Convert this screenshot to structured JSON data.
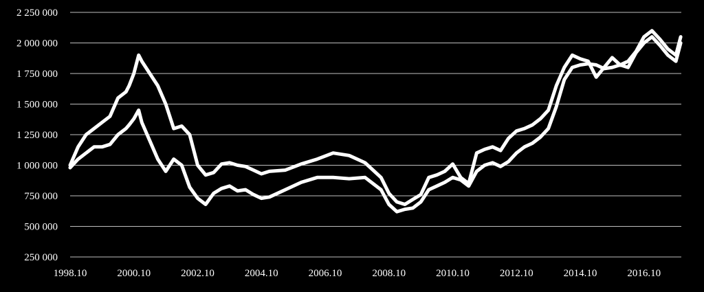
{
  "chart_data": {
    "type": "line",
    "title": "",
    "xlabel": "",
    "ylabel": "",
    "xlim": [
      1998.75,
      2017.92
    ],
    "ylim": [
      250000,
      2250000
    ],
    "grid": true,
    "legend": "none",
    "colors": {
      "background": "#000000",
      "line": "#ffffff",
      "grid": "#bfbfbf",
      "text": "#ffffff"
    },
    "yticks": [
      {
        "value": 2250000,
        "label": "2 250 000"
      },
      {
        "value": 2000000,
        "label": "2 000 000"
      },
      {
        "value": 1750000,
        "label": "1 750 000"
      },
      {
        "value": 1500000,
        "label": "1 500 000"
      },
      {
        "value": 1250000,
        "label": "1 250 000"
      },
      {
        "value": 1000000,
        "label": "1 000 000"
      },
      {
        "value": 750000,
        "label": "750 000"
      },
      {
        "value": 500000,
        "label": "500 000"
      },
      {
        "value": 250000,
        "label": "250 000"
      }
    ],
    "xticks": [
      {
        "value": 1998.75,
        "label": "1998.10"
      },
      {
        "value": 2000.75,
        "label": "2000.10"
      },
      {
        "value": 2002.75,
        "label": "2002.10"
      },
      {
        "value": 2004.75,
        "label": "2004.10"
      },
      {
        "value": 2006.75,
        "label": "2006.10"
      },
      {
        "value": 2008.75,
        "label": "2008.10"
      },
      {
        "value": 2010.75,
        "label": "2010.10"
      },
      {
        "value": 2012.75,
        "label": "2012.10"
      },
      {
        "value": 2014.75,
        "label": "2014.10"
      },
      {
        "value": 2016.75,
        "label": "2016.10"
      }
    ],
    "series": [
      {
        "x": [
          1998.75,
          1999.0,
          1999.25,
          1999.5,
          1999.75,
          2000.0,
          2000.25,
          2000.5,
          2000.6,
          2000.75,
          2000.9,
          2001.0,
          2001.25,
          2001.5,
          2001.75,
          2002.0,
          2002.25,
          2002.5,
          2002.75,
          2003.0,
          2003.25,
          2003.5,
          2003.75,
          2004.0,
          2004.25,
          2004.5,
          2004.75,
          2005.0,
          2005.5,
          2006.0,
          2006.5,
          2007.0,
          2007.5,
          2008.0,
          2008.5,
          2008.75,
          2009.0,
          2009.25,
          2009.5,
          2009.75,
          2010.0,
          2010.25,
          2010.5,
          2010.75,
          2011.0,
          2011.25,
          2011.5,
          2011.75,
          2012.0,
          2012.25,
          2012.5,
          2012.75,
          2013.0,
          2013.25,
          2013.5,
          2013.75,
          2014.0,
          2014.25,
          2014.5,
          2014.75,
          2015.0,
          2015.25,
          2015.5,
          2015.75,
          2016.0,
          2016.25,
          2016.5,
          2016.75,
          2017.0,
          2017.25,
          2017.5,
          2017.75,
          2017.9
        ],
        "y": [
          1000000,
          1150000,
          1250000,
          1300000,
          1350000,
          1400000,
          1550000,
          1600000,
          1650000,
          1750000,
          1900000,
          1850000,
          1750000,
          1650000,
          1500000,
          1300000,
          1320000,
          1250000,
          1000000,
          920000,
          940000,
          1010000,
          1020000,
          1000000,
          990000,
          960000,
          930000,
          950000,
          960000,
          1010000,
          1050000,
          1100000,
          1080000,
          1020000,
          900000,
          770000,
          700000,
          680000,
          720000,
          760000,
          900000,
          920000,
          950000,
          1010000,
          900000,
          850000,
          1100000,
          1130000,
          1150000,
          1120000,
          1220000,
          1280000,
          1300000,
          1330000,
          1380000,
          1450000,
          1650000,
          1800000,
          1900000,
          1870000,
          1850000,
          1720000,
          1800000,
          1880000,
          1820000,
          1850000,
          1930000,
          2050000,
          2100000,
          2030000,
          1950000,
          1900000,
          2050000
        ]
      },
      {
        "x": [
          1998.75,
          1999.0,
          1999.25,
          1999.5,
          1999.75,
          2000.0,
          2000.25,
          2000.5,
          2000.6,
          2000.75,
          2000.9,
          2001.0,
          2001.25,
          2001.5,
          2001.75,
          2002.0,
          2002.25,
          2002.5,
          2002.75,
          2003.0,
          2003.25,
          2003.5,
          2003.75,
          2004.0,
          2004.25,
          2004.5,
          2004.75,
          2005.0,
          2005.5,
          2006.0,
          2006.5,
          2007.0,
          2007.5,
          2008.0,
          2008.5,
          2008.75,
          2009.0,
          2009.25,
          2009.5,
          2009.75,
          2010.0,
          2010.25,
          2010.5,
          2010.75,
          2011.0,
          2011.25,
          2011.5,
          2011.75,
          2012.0,
          2012.25,
          2012.5,
          2012.75,
          2013.0,
          2013.25,
          2013.5,
          2013.75,
          2014.0,
          2014.25,
          2014.5,
          2014.75,
          2015.0,
          2015.25,
          2015.5,
          2015.75,
          2016.0,
          2016.25,
          2016.5,
          2016.75,
          2017.0,
          2017.25,
          2017.5,
          2017.75,
          2017.9
        ],
        "y": [
          980000,
          1050000,
          1100000,
          1150000,
          1150000,
          1170000,
          1250000,
          1300000,
          1330000,
          1380000,
          1450000,
          1350000,
          1200000,
          1050000,
          950000,
          1050000,
          1000000,
          820000,
          730000,
          680000,
          770000,
          810000,
          830000,
          790000,
          800000,
          760000,
          730000,
          740000,
          800000,
          860000,
          900000,
          900000,
          890000,
          900000,
          800000,
          680000,
          620000,
          640000,
          650000,
          700000,
          800000,
          830000,
          860000,
          900000,
          880000,
          830000,
          950000,
          1000000,
          1020000,
          990000,
          1030000,
          1100000,
          1150000,
          1180000,
          1230000,
          1300000,
          1480000,
          1700000,
          1800000,
          1820000,
          1830000,
          1820000,
          1790000,
          1800000,
          1820000,
          1800000,
          1920000,
          2000000,
          2050000,
          1980000,
          1900000,
          1850000,
          2000000
        ]
      }
    ]
  }
}
